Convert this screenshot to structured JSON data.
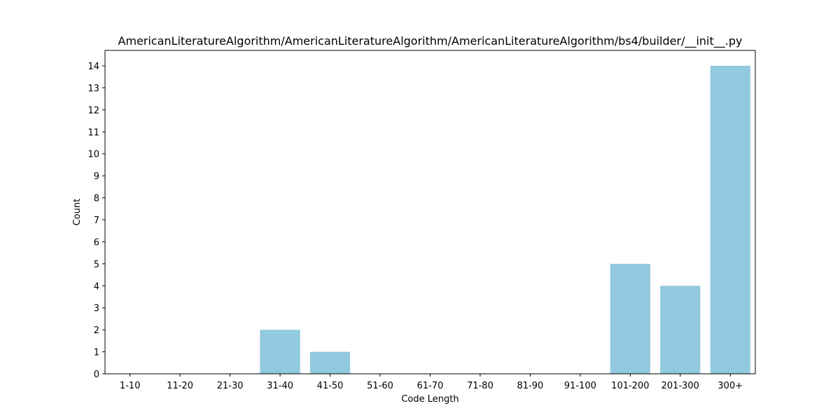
{
  "colors": {
    "bar": "#92c9df",
    "axis": "#000000",
    "background": "#ffffff"
  },
  "chart_data": {
    "type": "bar",
    "title": "AmericanLiteratureAlgorithm/AmericanLiteratureAlgorithm/AmericanLiteratureAlgorithm/bs4/builder/__init__.py",
    "xlabel": "Code Length",
    "ylabel": "Count",
    "categories": [
      "1-10",
      "11-20",
      "21-30",
      "31-40",
      "41-50",
      "51-60",
      "61-70",
      "71-80",
      "81-90",
      "91-100",
      "101-200",
      "201-300",
      "300+"
    ],
    "values": [
      0,
      0,
      0,
      2,
      1,
      0,
      0,
      0,
      0,
      0,
      5,
      4,
      14
    ],
    "ylim": [
      0,
      14.7
    ],
    "yticks": [
      0,
      1,
      2,
      3,
      4,
      5,
      6,
      7,
      8,
      9,
      10,
      11,
      12,
      13,
      14
    ],
    "grid": false,
    "legend": "none"
  }
}
